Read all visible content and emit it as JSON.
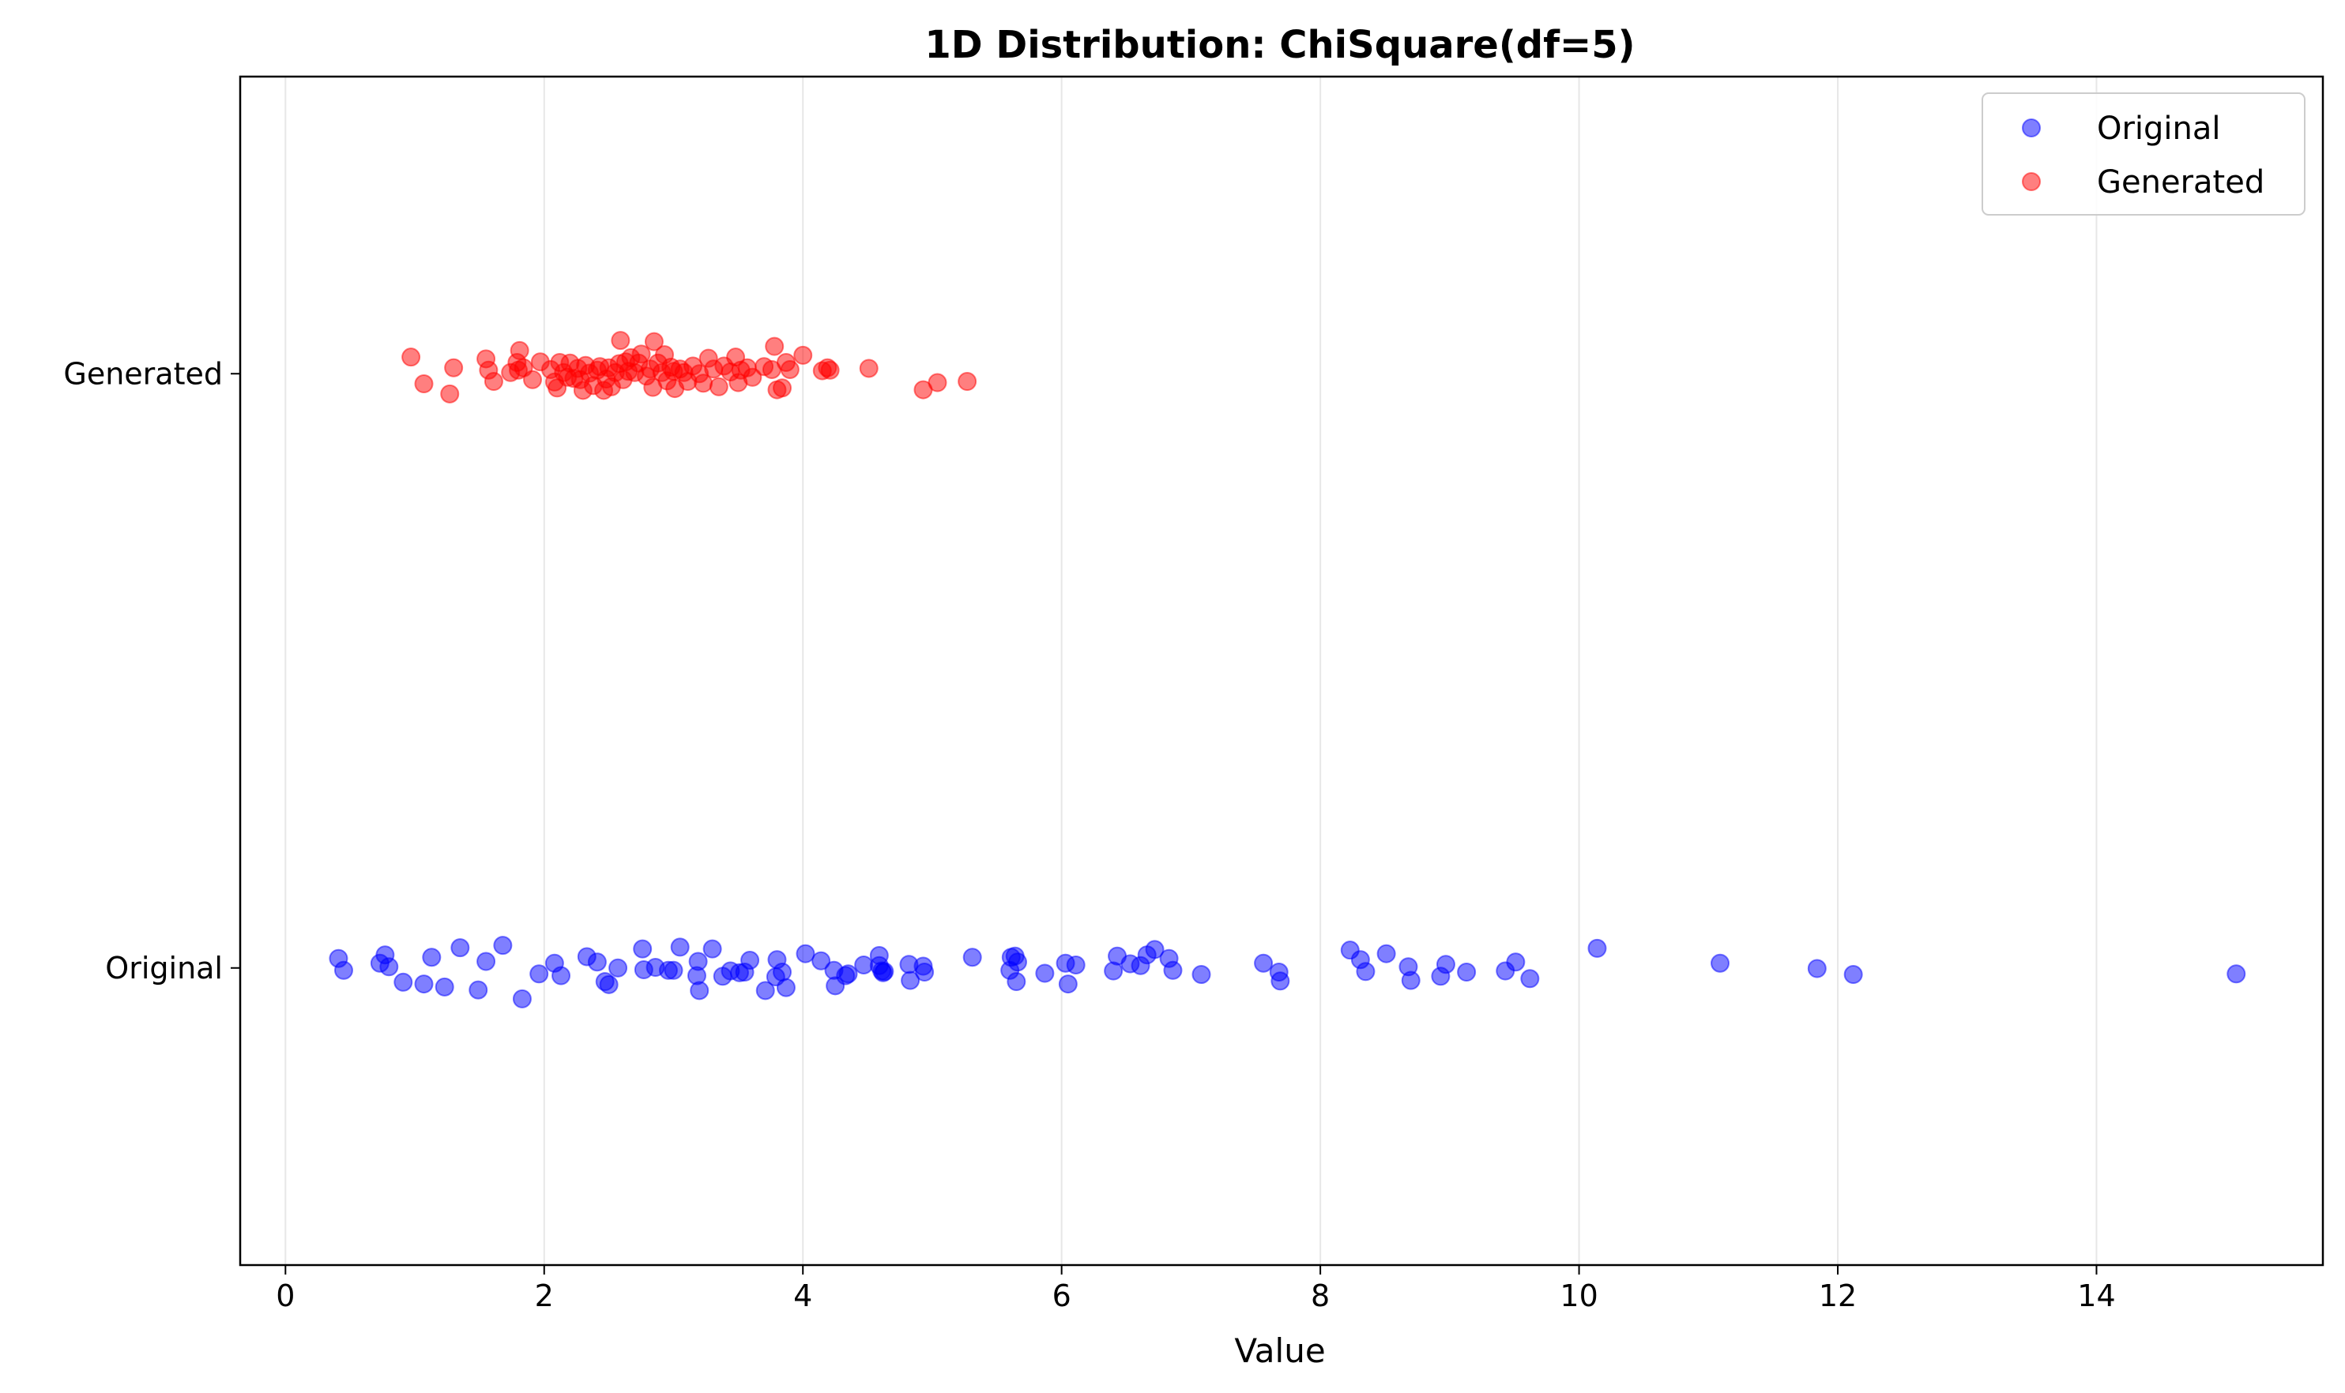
{
  "chart_data": {
    "type": "scatter",
    "title": "1D Distribution: ChiSquare(df=5)",
    "xlabel": "Value",
    "ylabel": "",
    "xlim": [
      -0.35,
      15.75
    ],
    "x_ticks": [
      0,
      2,
      4,
      6,
      8,
      10,
      12,
      14
    ],
    "y_categories": [
      "Original",
      "Generated"
    ],
    "ylim": [
      -0.5,
      1.5
    ],
    "grid": "x-only",
    "legend_position": "top-right",
    "series": [
      {
        "name": "Original",
        "color": "#0000ff",
        "category_index": 0,
        "points": [
          [
            0.41,
            0.016
          ],
          [
            0.45,
            -0.004
          ],
          [
            0.73,
            0.008
          ],
          [
            0.77,
            0.022
          ],
          [
            0.8,
            0.002
          ],
          [
            0.91,
            -0.024
          ],
          [
            1.07,
            -0.027
          ],
          [
            1.13,
            0.018
          ],
          [
            1.23,
            -0.032
          ],
          [
            1.35,
            0.034
          ],
          [
            1.49,
            -0.037
          ],
          [
            1.55,
            0.011
          ],
          [
            1.68,
            0.038
          ],
          [
            1.83,
            -0.052
          ],
          [
            1.96,
            -0.01
          ],
          [
            2.08,
            0.008
          ],
          [
            2.13,
            -0.013
          ],
          [
            2.33,
            0.019
          ],
          [
            2.41,
            0.01
          ],
          [
            2.47,
            -0.023
          ],
          [
            2.5,
            -0.028
          ],
          [
            2.57,
            0.0
          ],
          [
            2.76,
            0.032
          ],
          [
            2.77,
            -0.003
          ],
          [
            2.86,
            0.001
          ],
          [
            2.96,
            -0.004
          ],
          [
            3.0,
            -0.004
          ],
          [
            3.05,
            0.035
          ],
          [
            3.18,
            -0.013
          ],
          [
            3.2,
            -0.038
          ],
          [
            3.19,
            0.011
          ],
          [
            3.3,
            0.032
          ],
          [
            3.38,
            -0.014
          ],
          [
            3.44,
            -0.005
          ],
          [
            3.51,
            -0.008
          ],
          [
            3.55,
            -0.007
          ],
          [
            3.59,
            0.013
          ],
          [
            3.71,
            -0.038
          ],
          [
            3.79,
            -0.015
          ],
          [
            3.8,
            0.014
          ],
          [
            3.84,
            -0.007
          ],
          [
            3.87,
            -0.033
          ],
          [
            4.02,
            0.024
          ],
          [
            4.14,
            0.012
          ],
          [
            4.24,
            -0.004
          ],
          [
            4.25,
            -0.03
          ],
          [
            4.33,
            -0.013
          ],
          [
            4.35,
            -0.01
          ],
          [
            4.47,
            0.005
          ],
          [
            4.59,
            0.021
          ],
          [
            4.59,
            0.004
          ],
          [
            4.61,
            -0.005
          ],
          [
            4.62,
            -0.008
          ],
          [
            4.63,
            -0.006
          ],
          [
            4.82,
            0.006
          ],
          [
            4.83,
            -0.021
          ],
          [
            4.93,
            0.003
          ],
          [
            4.94,
            -0.007
          ],
          [
            5.31,
            0.018
          ],
          [
            5.61,
            0.018
          ],
          [
            5.6,
            -0.004
          ],
          [
            5.64,
            0.02
          ],
          [
            5.66,
            0.01
          ],
          [
            5.65,
            -0.023
          ],
          [
            5.87,
            -0.009
          ],
          [
            6.03,
            0.008
          ],
          [
            6.05,
            -0.027
          ],
          [
            6.11,
            0.005
          ],
          [
            6.4,
            -0.005
          ],
          [
            6.43,
            0.02
          ],
          [
            6.53,
            0.007
          ],
          [
            6.61,
            0.004
          ],
          [
            6.66,
            0.022
          ],
          [
            6.72,
            0.031
          ],
          [
            6.83,
            0.016
          ],
          [
            6.86,
            -0.004
          ],
          [
            7.08,
            -0.011
          ],
          [
            7.56,
            0.008
          ],
          [
            7.68,
            -0.007
          ],
          [
            7.69,
            -0.022
          ],
          [
            8.23,
            0.03
          ],
          [
            8.31,
            0.014
          ],
          [
            8.35,
            -0.006
          ],
          [
            8.51,
            0.024
          ],
          [
            8.68,
            0.002
          ],
          [
            8.7,
            -0.021
          ],
          [
            8.93,
            -0.014
          ],
          [
            8.97,
            0.006
          ],
          [
            9.13,
            -0.007
          ],
          [
            9.43,
            -0.005
          ],
          [
            9.51,
            0.01
          ],
          [
            9.62,
            -0.018
          ],
          [
            10.14,
            0.033
          ],
          [
            11.09,
            0.008
          ],
          [
            11.84,
            -0.001
          ],
          [
            12.12,
            -0.011
          ],
          [
            15.08,
            -0.01
          ]
        ]
      },
      {
        "name": "Generated",
        "color": "#ff0000",
        "category_index": 1,
        "points": [
          [
            0.97,
            0.028
          ],
          [
            1.07,
            -0.017
          ],
          [
            1.27,
            -0.034
          ],
          [
            1.3,
            0.01
          ],
          [
            1.55,
            0.025
          ],
          [
            1.57,
            0.006
          ],
          [
            1.61,
            -0.013
          ],
          [
            1.74,
            0.002
          ],
          [
            1.79,
            0.019
          ],
          [
            1.8,
            0.006
          ],
          [
            1.81,
            0.039
          ],
          [
            1.84,
            0.01
          ],
          [
            1.91,
            -0.01
          ],
          [
            1.97,
            0.02
          ],
          [
            2.05,
            0.007
          ],
          [
            2.08,
            -0.014
          ],
          [
            2.1,
            -0.024
          ],
          [
            2.12,
            0.019
          ],
          [
            2.15,
            0.002
          ],
          [
            2.18,
            -0.006
          ],
          [
            2.2,
            0.018
          ],
          [
            2.23,
            -0.008
          ],
          [
            2.26,
            0.009
          ],
          [
            2.28,
            -0.01
          ],
          [
            2.3,
            -0.028
          ],
          [
            2.32,
            0.014
          ],
          [
            2.35,
            0.001
          ],
          [
            2.38,
            -0.02
          ],
          [
            2.41,
            0.006
          ],
          [
            2.43,
            0.012
          ],
          [
            2.46,
            -0.028
          ],
          [
            2.48,
            -0.009
          ],
          [
            2.5,
            0.01
          ],
          [
            2.52,
            -0.022
          ],
          [
            2.55,
            0.002
          ],
          [
            2.58,
            0.017
          ],
          [
            2.59,
            0.056
          ],
          [
            2.61,
            -0.01
          ],
          [
            2.63,
            0.02
          ],
          [
            2.65,
            0.004
          ],
          [
            2.67,
            0.027
          ],
          [
            2.7,
            0.002
          ],
          [
            2.73,
            0.018
          ],
          [
            2.75,
            0.033
          ],
          [
            2.79,
            -0.004
          ],
          [
            2.82,
            0.008
          ],
          [
            2.84,
            -0.023
          ],
          [
            2.85,
            0.054
          ],
          [
            2.88,
            0.018
          ],
          [
            2.91,
            0.002
          ],
          [
            2.93,
            0.032
          ],
          [
            2.95,
            -0.012
          ],
          [
            2.98,
            0.011
          ],
          [
            3.0,
            0.004
          ],
          [
            3.01,
            -0.025
          ],
          [
            3.05,
            0.008
          ],
          [
            3.08,
            0.002
          ],
          [
            3.11,
            -0.013
          ],
          [
            3.15,
            0.013
          ],
          [
            3.2,
            0.0
          ],
          [
            3.23,
            -0.016
          ],
          [
            3.27,
            0.026
          ],
          [
            3.31,
            0.008
          ],
          [
            3.35,
            -0.022
          ],
          [
            3.39,
            0.013
          ],
          [
            3.44,
            0.003
          ],
          [
            3.48,
            0.028
          ],
          [
            3.5,
            -0.015
          ],
          [
            3.52,
            0.006
          ],
          [
            3.57,
            0.01
          ],
          [
            3.61,
            -0.006
          ],
          [
            3.7,
            0.012
          ],
          [
            3.76,
            0.007
          ],
          [
            3.78,
            0.046
          ],
          [
            3.8,
            -0.027
          ],
          [
            3.84,
            -0.024
          ],
          [
            3.87,
            0.019
          ],
          [
            3.9,
            0.007
          ],
          [
            4.0,
            0.031
          ],
          [
            4.15,
            0.005
          ],
          [
            4.19,
            0.01
          ],
          [
            4.21,
            0.006
          ],
          [
            4.51,
            0.009
          ],
          [
            4.93,
            -0.027
          ],
          [
            5.04,
            -0.015
          ],
          [
            5.27,
            -0.013
          ]
        ]
      }
    ]
  }
}
